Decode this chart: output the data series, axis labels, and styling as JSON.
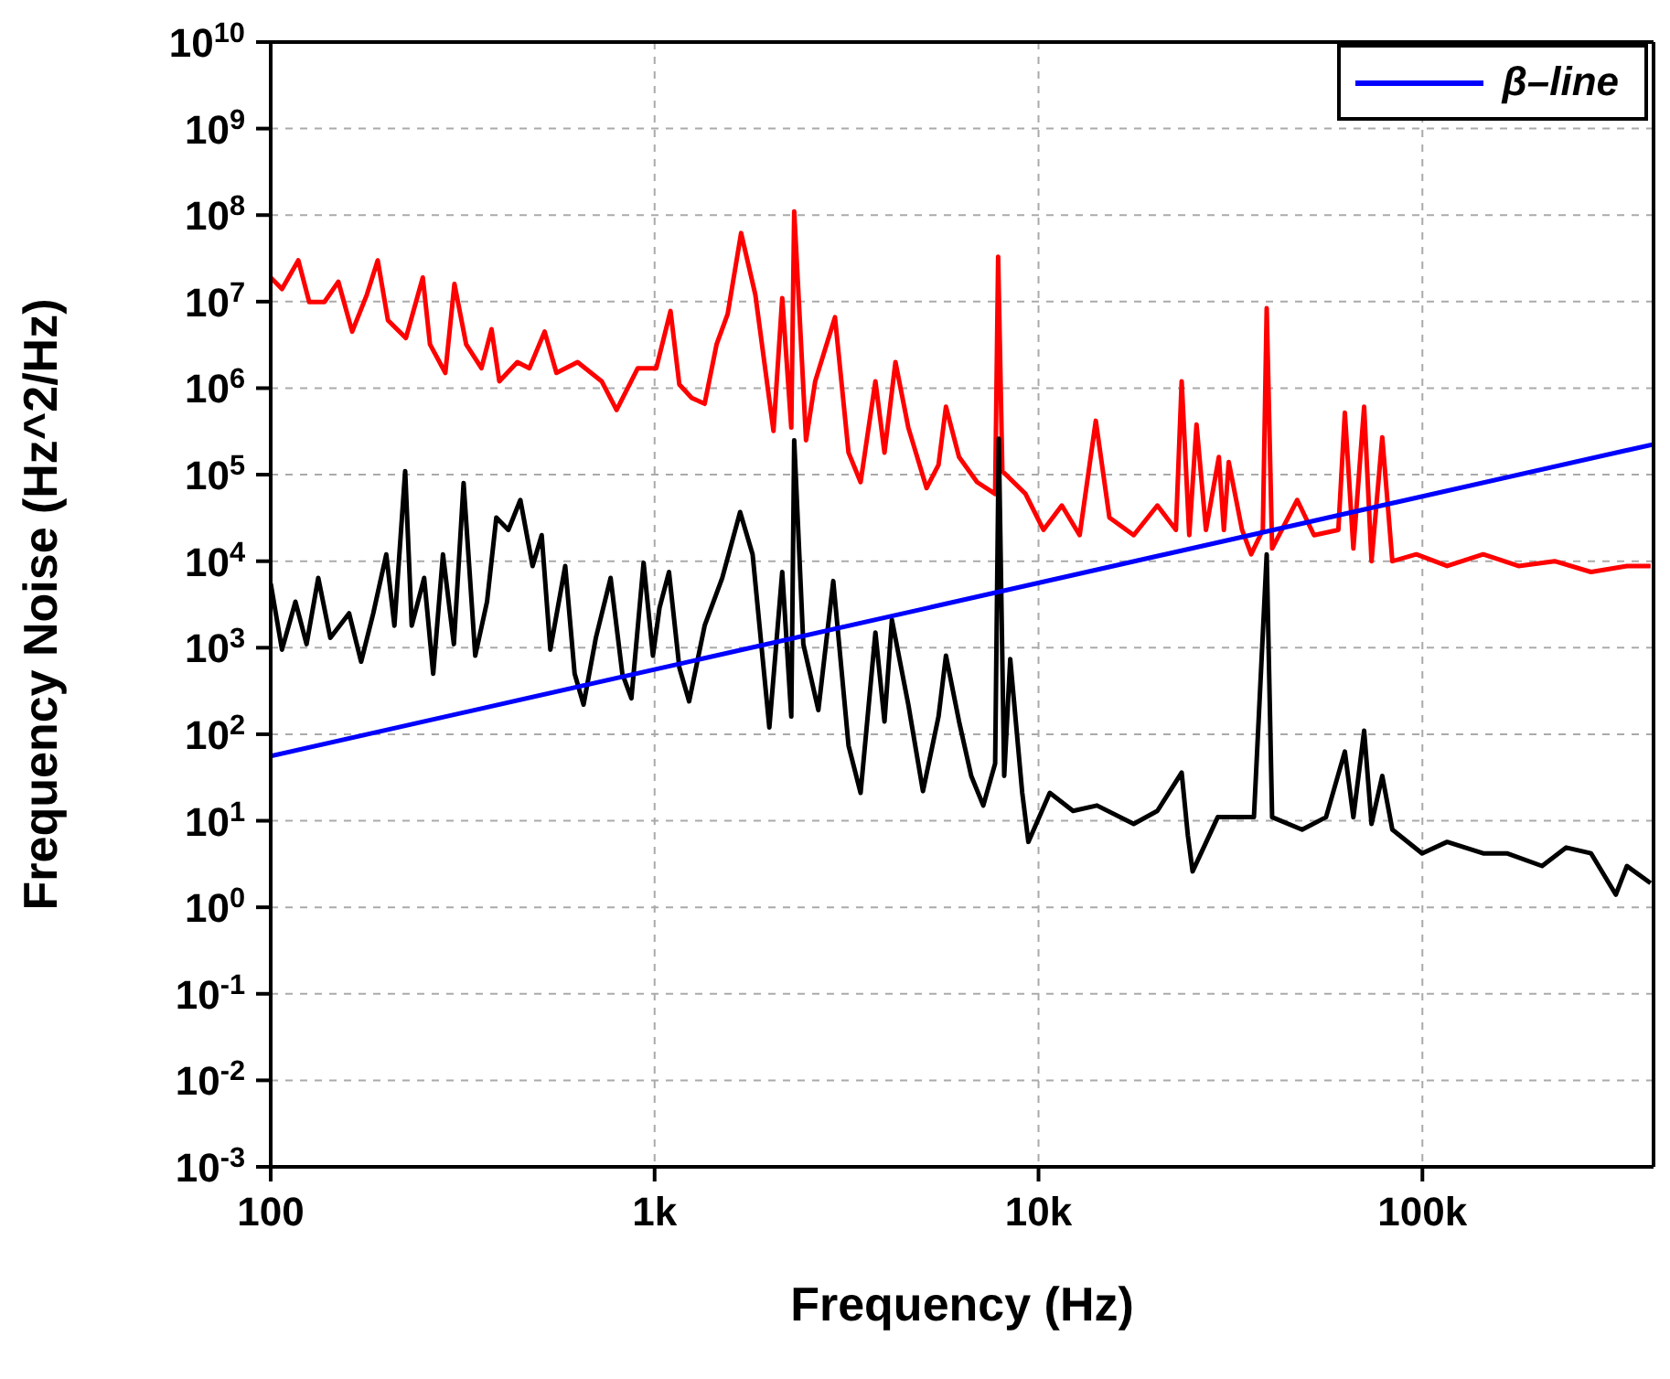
{
  "chart_data": {
    "type": "line",
    "xlabel": "Frequency (Hz)",
    "ylabel": "Frequency Noise (Hz^2/Hz)",
    "log": "xy",
    "grid": true,
    "legend": "top right",
    "xlim": [
      100,
      400000
    ],
    "xticks": [
      100,
      {
        "value": 1000,
        "label": "1k"
      },
      {
        "value": 10000,
        "label": "10k"
      },
      {
        "value": 100000,
        "label": "100k"
      }
    ],
    "ylim": [
      0.001,
      10000000000
    ],
    "yticks": [
      {
        "value": 0.001,
        "label": "10$^{-3}$"
      },
      {
        "value": 0.01,
        "label": "10$^{-2}$"
      },
      {
        "value": 0.1,
        "label": "10$^{-1}$"
      },
      {
        "value": 1,
        "label": "10$^{0}$"
      },
      {
        "value": 10,
        "label": "10$^{1}$"
      },
      {
        "value": 100,
        "label": "10$^{2}$"
      },
      {
        "value": 1000,
        "label": "10$^{3}$"
      },
      {
        "value": 10000,
        "label": "10$^{4}$"
      },
      {
        "value": 100000,
        "label": "10$^{5}$"
      },
      {
        "value": 1000000,
        "label": "10$^{6}$"
      },
      {
        "value": 10000000,
        "label": "10$^{7}$"
      },
      {
        "value": 100000000,
        "label": "10$^{8}$"
      },
      {
        "value": 1000000000,
        "label": "10$^{9}$"
      },
      {
        "value": 10000000000,
        "label": "10$^{10}$"
      }
    ],
    "series": [
      {
        "color": "#ff0000",
        "x": [
          100,
          107,
          118,
          126,
          138,
          150,
          163,
          178,
          190,
          202,
          225,
          249,
          260,
          285,
          301,
          323,
          354,
          376,
          394,
          439,
          472,
          517,
          555,
          630,
          728,
          796,
          904,
          1010,
          1100,
          1160,
          1250,
          1350,
          1450,
          1550,
          1680,
          1830,
          2040,
          2150,
          2270,
          2310,
          2480,
          2620,
          2950,
          3200,
          3440,
          3760,
          3970,
          4240,
          4580,
          5110,
          5490,
          5740,
          6210,
          6920,
          7710,
          7850,
          8050,
          9250,
          10300,
          11500,
          12800,
          14100,
          15300,
          17700,
          20400,
          22800,
          23600,
          24700,
          25800,
          27300,
          29500,
          30400,
          31300,
          33900,
          35800,
          38400,
          39300,
          40600,
          47200,
          52200,
          60400,
          62800,
          66100,
          70500,
          73700,
          78600,
          83500,
          96400,
          116000,
          144000,
          178000,
          221000,
          275000,
          341000,
          393000
        ],
        "values": [
          19000000,
          14000000,
          30000000,
          9900000,
          9900000,
          17000000,
          4500000,
          12000000,
          30000000,
          6100000,
          3800000,
          19000000,
          3200000,
          1500000,
          16000000,
          3200000,
          1700000,
          4800000,
          1200000,
          2000000,
          1700000,
          4500000,
          1500000,
          2000000,
          1200000,
          560000,
          1700000,
          1700000,
          7800000,
          1100000,
          770000,
          660000,
          3200000,
          7200000,
          62000000,
          12000000,
          320000,
          11000000,
          350000,
          110000000,
          250000,
          1200000,
          6600000,
          180000,
          82000,
          1200000,
          180000,
          2000000,
          350000,
          70000,
          130000,
          610000,
          160000,
          82000,
          60000,
          33000000,
          110000,
          60000,
          23000,
          44000,
          20000,
          420000,
          32000,
          20000,
          44000,
          23000,
          1200000,
          20000,
          380000,
          23000,
          160000,
          23000,
          140000,
          23000,
          12000,
          23000,
          8400000,
          14000,
          51000,
          20000,
          23000,
          520000,
          14000,
          610000,
          10000,
          270000,
          10000,
          12000,
          8800,
          12000,
          8800,
          10000,
          7500,
          8800,
          8800
        ]
      },
      {
        "color": "#000000",
        "x": [
          100,
          107,
          116,
          124,
          133,
          143,
          160,
          172,
          185,
          200,
          210,
          224,
          233,
          251,
          265,
          281,
          300,
          318,
          341,
          366,
          387,
          416,
          447,
          481,
          508,
          535,
          585,
          619,
          653,
          703,
          768,
          824,
          870,
          936,
          990,
          1030,
          1090,
          1160,
          1230,
          1350,
          1500,
          1670,
          1800,
          1990,
          2150,
          2270,
          2310,
          2440,
          2670,
          2920,
          3200,
          3440,
          3760,
          3970,
          4150,
          4580,
          5000,
          5490,
          5740,
          6210,
          6680,
          7180,
          7710,
          7880,
          8140,
          8440,
          9070,
          9410,
          10700,
          12300,
          14200,
          17700,
          20400,
          23600,
          24500,
          25200,
          29300,
          36400,
          39300,
          40600,
          48600,
          56100,
          62800,
          66100,
          70500,
          73700,
          78600,
          83500,
          99800,
          116000,
          144000,
          166000,
          205000,
          237000,
          275000,
          319000,
          341000,
          393000
        ],
        "values": [
          5500,
          950,
          3400,
          1100,
          6400,
          1300,
          2500,
          690,
          2500,
          12000,
          1800,
          110000,
          1800,
          6400,
          500,
          12000,
          1100,
          80000,
          810,
          3400,
          32000,
          23000,
          51000,
          8800,
          20000,
          950,
          8800,
          500,
          220,
          1300,
          6400,
          500,
          260,
          9600,
          810,
          2900,
          7500,
          590,
          240,
          1800,
          6400,
          37000,
          12000,
          120,
          7500,
          160,
          250000,
          1100,
          190,
          5900,
          74,
          21,
          1500,
          140,
          2100,
          220,
          22,
          160,
          810,
          140,
          33,
          15,
          46,
          260000,
          33,
          740,
          21,
          5.7,
          21,
          13,
          15,
          9.2,
          13,
          36,
          6.7,
          2.6,
          11,
          11,
          12000,
          11,
          7.9,
          11,
          63,
          11,
          110,
          9.2,
          33,
          7.9,
          4.2,
          5.7,
          4.2,
          4.2,
          3.0,
          4.9,
          4.2,
          1.4,
          3.0,
          1.9
        ]
      },
      {
        "name": "β–line",
        "color": "#0000ff",
        "x": [
          100,
          400000
        ],
        "values": [
          56,
          224600
        ]
      }
    ]
  }
}
